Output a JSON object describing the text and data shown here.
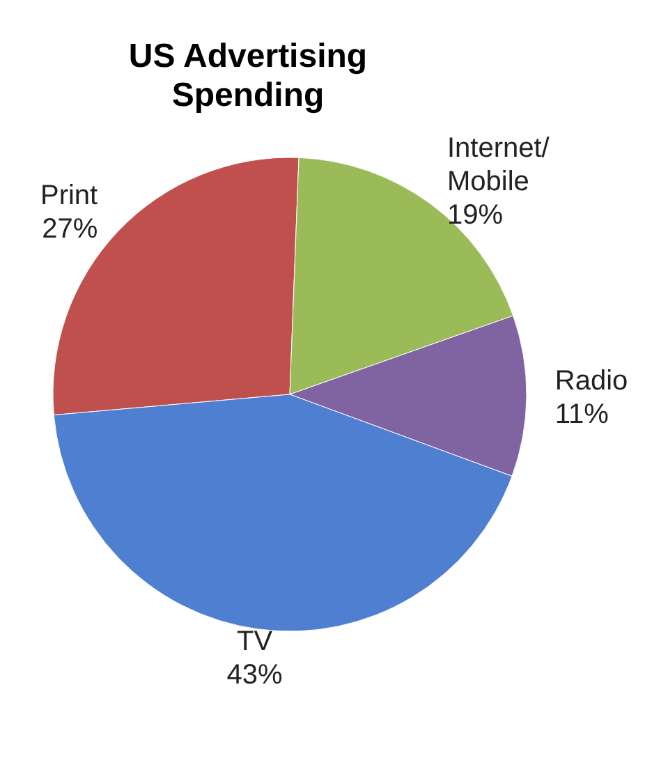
{
  "chart_data": {
    "type": "pie",
    "title": "US Advertising Spending",
    "categories": [
      "Print",
      "Internet/Mobile",
      "Radio",
      "TV"
    ],
    "values": [
      27,
      19,
      11,
      43
    ],
    "colors": [
      "#c0504d",
      "#9bbb59",
      "#8064a2",
      "#4f7fd1"
    ],
    "value_labels": [
      "27%",
      "19%",
      "11%",
      "43%"
    ]
  }
}
